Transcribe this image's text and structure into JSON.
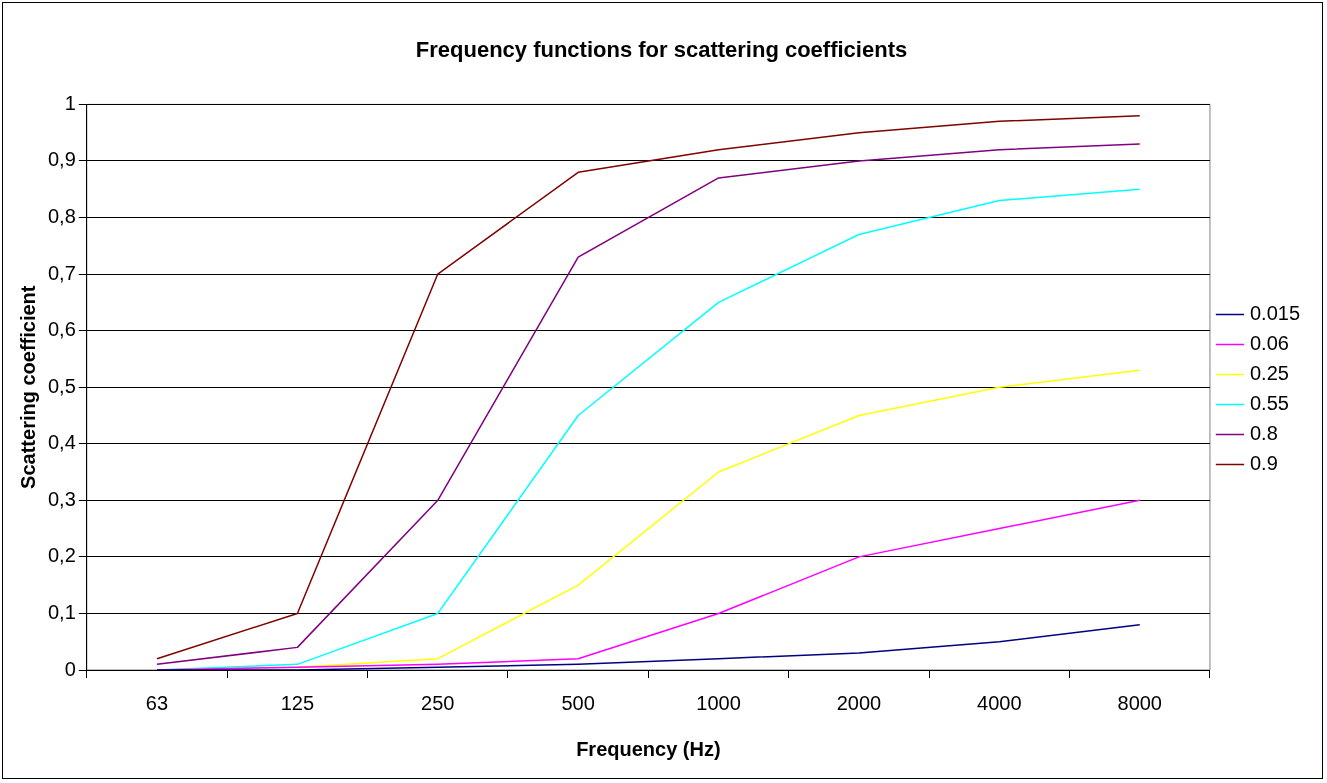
{
  "chart_data": {
    "type": "line",
    "title": "Frequency functions for scattering coefficients",
    "xlabel": "Frequency (Hz)",
    "ylabel": "Scattering coefficient",
    "categories": [
      "63",
      "125",
      "250",
      "500",
      "1000",
      "2000",
      "4000",
      "8000"
    ],
    "series": [
      {
        "name": "0.015",
        "color": "#000080",
        "values": [
          0,
          0,
          0.005,
          0.01,
          0.02,
          0.03,
          0.05,
          0.08
        ]
      },
      {
        "name": "0.06",
        "color": "#ff00ff",
        "values": [
          0,
          0.005,
          0.01,
          0.02,
          0.1,
          0.2,
          0.25,
          0.3
        ]
      },
      {
        "name": "0.25",
        "color": "#ffff00",
        "values": [
          0,
          0.005,
          0.02,
          0.15,
          0.35,
          0.45,
          0.5,
          0.53
        ]
      },
      {
        "name": "0.55",
        "color": "#00ffff",
        "values": [
          0,
          0.01,
          0.1,
          0.45,
          0.65,
          0.77,
          0.83,
          0.85
        ]
      },
      {
        "name": "0.8",
        "color": "#800080",
        "values": [
          0.01,
          0.04,
          0.3,
          0.73,
          0.87,
          0.9,
          0.92,
          0.93
        ]
      },
      {
        "name": "0.9",
        "color": "#800000",
        "values": [
          0.02,
          0.1,
          0.7,
          0.88,
          0.92,
          0.95,
          0.97,
          0.98
        ]
      }
    ],
    "ylim": [
      0,
      1
    ],
    "yticks": [
      0,
      {
        "value": 0.1,
        "label": "0,1"
      },
      {
        "value": 0.2,
        "label": "0,2"
      },
      {
        "value": 0.3,
        "label": "0,3"
      },
      {
        "value": 0.4,
        "label": "0,4"
      },
      {
        "value": 0.5,
        "label": "0,5"
      },
      {
        "value": 0.6,
        "label": "0,6"
      },
      {
        "value": 0.7,
        "label": "0,7"
      },
      {
        "value": 0.8,
        "label": "0,8"
      },
      {
        "value": 0.9,
        "label": "0,9"
      },
      1
    ],
    "grid": "y",
    "legend": "right",
    "marker": "none",
    "line_style": "solid"
  }
}
